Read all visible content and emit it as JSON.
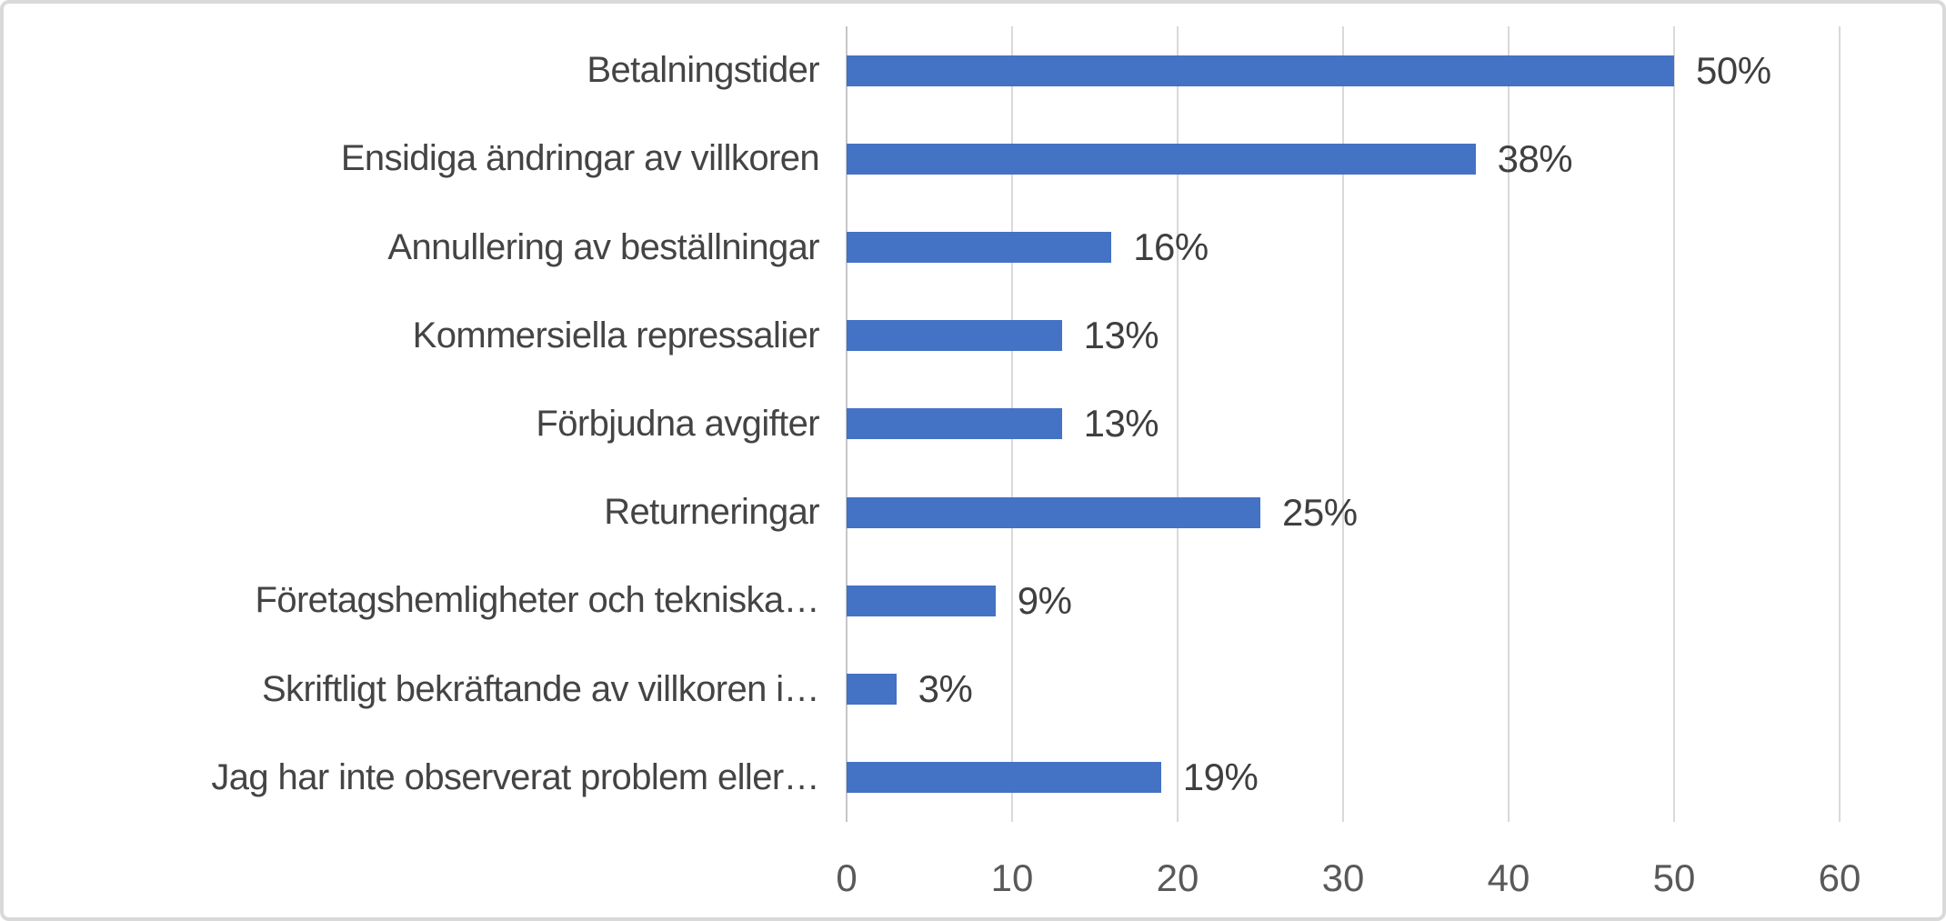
{
  "colors": {
    "bar": "#4472C4",
    "gridline": "#d9d9d9",
    "axis_line": "#c6c6c6",
    "category_text": "#444444",
    "value_text": "#3f3f3f",
    "tick_text": "#595959",
    "frame_border": "#d9d9d9",
    "background": "#ffffff"
  },
  "chart_data": {
    "type": "bar",
    "orientation": "horizontal",
    "title": "",
    "xlabel": "",
    "ylabel": "",
    "categories": [
      "Betalningstider",
      "Ensidiga ändringar av villkoren",
      "Annullering av beställningar",
      "Kommersiella repressalier",
      "Förbjudna avgifter",
      "Returneringar",
      "Företagshemligheter och tekniska…",
      "Skriftligt bekräftande av villkoren i…",
      "Jag har inte observerat problem eller…"
    ],
    "values": [
      50,
      38,
      16,
      13,
      13,
      25,
      9,
      3,
      19
    ],
    "value_labels": [
      "50%",
      "38%",
      "16%",
      "13%",
      "13%",
      "25%",
      "9%",
      "3%",
      "19%"
    ],
    "xlim": [
      0,
      60
    ],
    "xticks": [
      0,
      10,
      20,
      30,
      40,
      50,
      60
    ],
    "grid": "vertical-only",
    "legend": "none",
    "data_labels_position": "outside-end"
  }
}
